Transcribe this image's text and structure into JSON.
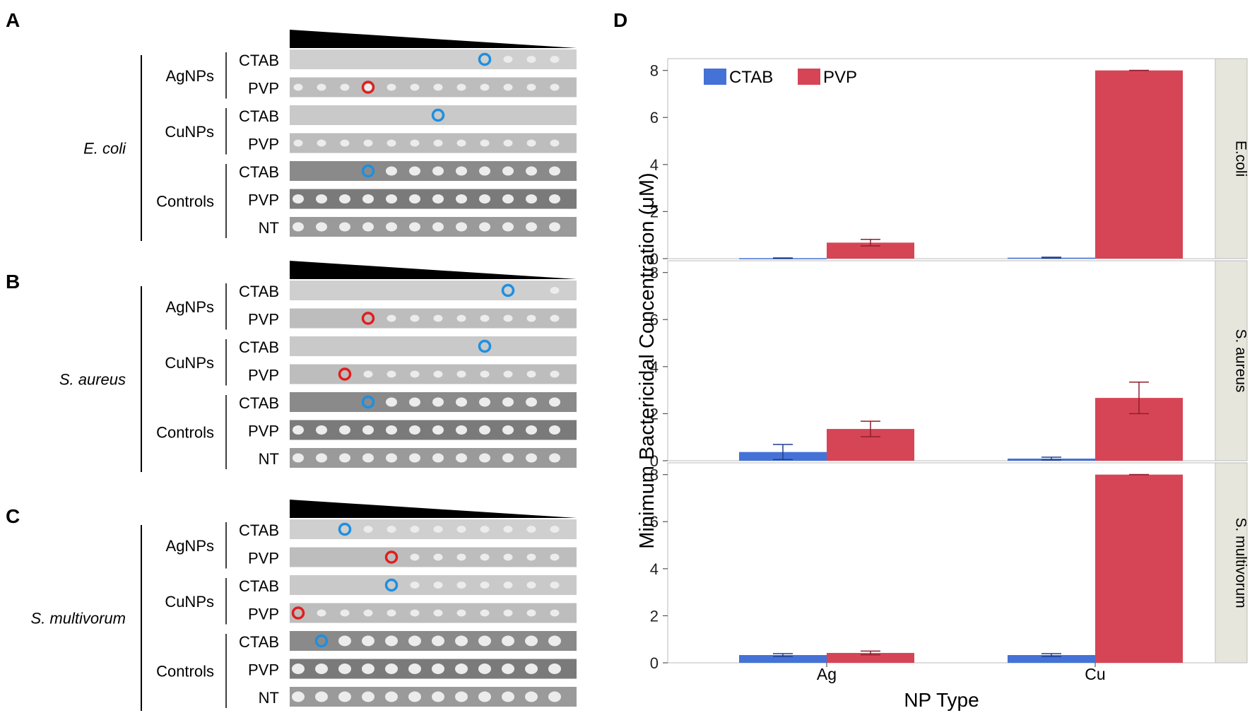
{
  "panel_labels": {
    "a": "A",
    "b": "B",
    "c": "C",
    "d": "D"
  },
  "plates": {
    "group_labels": [
      "AgNPs",
      "CuNPs",
      "Controls"
    ],
    "row_labels": [
      "CTAB",
      "PVP",
      "CTAB",
      "PVP",
      "CTAB",
      "PVP",
      "NT"
    ],
    "organisms": [
      {
        "name": "E. coli",
        "circles": [
          {
            "row": 0,
            "col": 8,
            "color": "blue"
          },
          {
            "row": 1,
            "col": 3,
            "color": "red"
          },
          {
            "row": 2,
            "col": 6,
            "color": "blue"
          },
          {
            "row": 4,
            "col": 3,
            "color": "blue"
          }
        ],
        "spot_start": [
          9,
          0,
          99,
          0,
          4,
          0,
          0
        ]
      },
      {
        "name": "S. aureus",
        "circles": [
          {
            "row": 0,
            "col": 9,
            "color": "blue"
          },
          {
            "row": 1,
            "col": 3,
            "color": "red"
          },
          {
            "row": 2,
            "col": 8,
            "color": "blue"
          },
          {
            "row": 3,
            "col": 2,
            "color": "red"
          },
          {
            "row": 4,
            "col": 3,
            "color": "blue"
          }
        ],
        "spot_start": [
          11,
          4,
          99,
          3,
          4,
          0,
          0
        ]
      },
      {
        "name": "S. multivorum",
        "circles": [
          {
            "row": 0,
            "col": 2,
            "color": "blue"
          },
          {
            "row": 1,
            "col": 4,
            "color": "red"
          },
          {
            "row": 2,
            "col": 4,
            "color": "blue"
          },
          {
            "row": 3,
            "col": 0,
            "color": "red"
          },
          {
            "row": 4,
            "col": 1,
            "color": "blue"
          }
        ],
        "spot_start": [
          3,
          5,
          5,
          1,
          2,
          0,
          0
        ]
      }
    ]
  },
  "colors": {
    "ctab": "#4472d6",
    "pvp": "#d64556",
    "circle_blue": "#1e8fe0",
    "circle_red": "#e01e1e",
    "strip_header": "#e6e6dc"
  },
  "chart_data": {
    "type": "bar",
    "title": "",
    "xlabel": "NP Type",
    "ylabel": "Minimum Bactericidal Concentration (μM)",
    "categories": [
      "Ag",
      "Cu"
    ],
    "legend": {
      "position": "top-left",
      "entries": [
        "CTAB",
        "PVP"
      ]
    },
    "ylim": [
      0,
      8.5
    ],
    "yticks": [
      "0",
      "2",
      "4",
      "6",
      "8"
    ],
    "facets": [
      {
        "label": "E.coli",
        "series": [
          {
            "name": "CTAB",
            "values": [
              0.02,
              0.04
            ],
            "errors": [
              0.01,
              0.02
            ]
          },
          {
            "name": "PVP",
            "values": [
              0.68,
              8.0
            ],
            "errors": [
              0.14,
              0.0
            ]
          }
        ]
      },
      {
        "label": "S. aureus",
        "series": [
          {
            "name": "CTAB",
            "values": [
              0.37,
              0.09
            ],
            "errors": [
              0.32,
              0.06
            ]
          },
          {
            "name": "PVP",
            "values": [
              1.35,
              2.67
            ],
            "errors": [
              0.33,
              0.67
            ]
          }
        ]
      },
      {
        "label": "S. multivorum",
        "series": [
          {
            "name": "CTAB",
            "values": [
              0.33,
              0.33
            ],
            "errors": [
              0.06,
              0.06
            ]
          },
          {
            "name": "PVP",
            "values": [
              0.42,
              8.0
            ],
            "errors": [
              0.08,
              0.0
            ]
          }
        ]
      }
    ]
  }
}
